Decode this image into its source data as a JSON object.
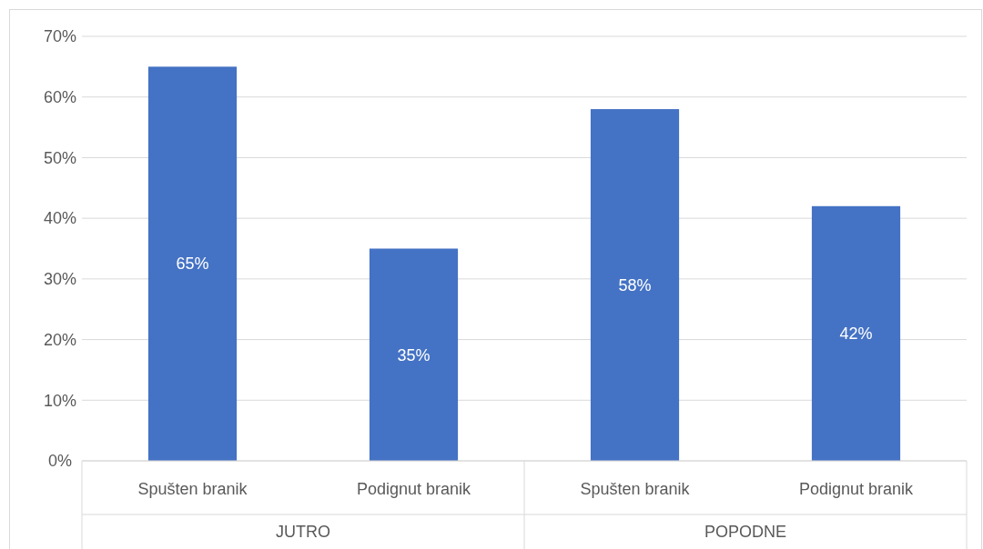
{
  "chart_data": {
    "type": "bar",
    "categories": [
      "Spušten branik",
      "Podignut branik",
      "Spušten branik",
      "Podignut branik"
    ],
    "values": [
      65,
      35,
      58,
      42
    ],
    "value_labels": [
      "65%",
      "35%",
      "58%",
      "42%"
    ],
    "color": "#4472c4",
    "ylim": [
      0,
      70
    ],
    "yticks": [
      {
        "value": 0,
        "label": "0%"
      },
      {
        "value": 10,
        "label": "10%"
      },
      {
        "value": 20,
        "label": "20%"
      },
      {
        "value": 30,
        "label": "30%"
      },
      {
        "value": 40,
        "label": "40%"
      },
      {
        "value": 50,
        "label": "50%"
      },
      {
        "value": 60,
        "label": "60%"
      },
      {
        "value": 70,
        "label": "70%"
      }
    ],
    "grid": "y",
    "annotations": [
      "JUTRO",
      "POPODNE"
    ]
  }
}
